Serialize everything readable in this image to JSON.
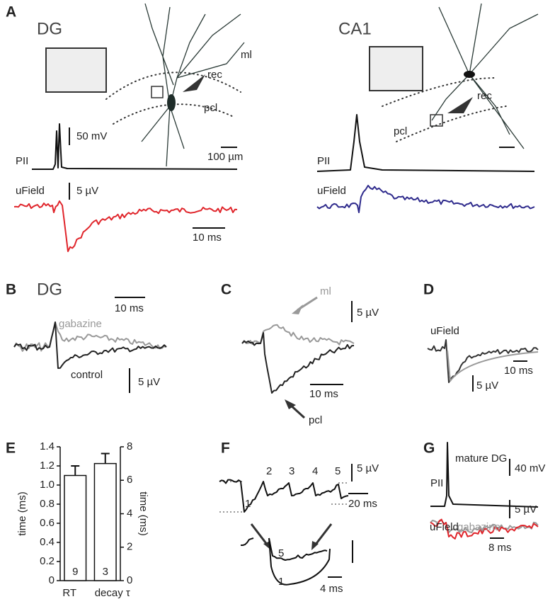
{
  "figure": {
    "panel_labels": [
      "A",
      "B",
      "C",
      "D",
      "E",
      "F",
      "G"
    ],
    "A": {
      "dg": {
        "title": "DG",
        "ml": "ml",
        "rec": "rec",
        "pcl": "pcl",
        "scale_voltage": "50 mV",
        "scale_length": "100 µm",
        "trace_top": "PII",
        "trace_bottom": "uField",
        "scale_field": "5 µV",
        "scale_time": "10 ms"
      },
      "ca1": {
        "title": "CA1",
        "rec": "rec",
        "pcl": "pcl",
        "trace_top": "PII",
        "trace_bottom": "uField"
      }
    },
    "B": {
      "title": "DG",
      "scale_time": "10 ms",
      "gabazine": "gabazine",
      "control": "control",
      "scale_field": "5 µV"
    },
    "C": {
      "ml": "ml",
      "scale_field": "5 µV",
      "scale_time": "10 ms",
      "pcl": "pcl"
    },
    "D": {
      "trace": "uField",
      "scale_time": "10 ms",
      "scale_field": "5 µV"
    },
    "F": {
      "numbers_top": [
        "1",
        "2",
        "3",
        "4",
        "5"
      ],
      "scale_field": "5 µV",
      "scale_time": "20 ms",
      "numbers_bottom": [
        "5",
        "1"
      ],
      "scale_time_bottom": "4 ms"
    },
    "G": {
      "mature": "mature DG",
      "scale_voltage": "40 mV",
      "trace_top": "PII",
      "scale_field": "5 µV",
      "trace_bottom": "uField",
      "gabazine": "gabazine",
      "scale_time": "8 ms"
    }
  },
  "chart_data": {
    "type": "bar",
    "categories": [
      "RT",
      "decay τ"
    ],
    "values": [
      1.1,
      7.0
    ],
    "errors": [
      0.1,
      0.6
    ],
    "value_axes": [
      "y",
      "y2"
    ],
    "n_labels": [
      "9",
      "3"
    ],
    "color": "#ffffff",
    "ylabel": "time (ms)",
    "y2label": "time (ms)",
    "ylim": [
      0,
      1.4
    ],
    "yticks": [
      0,
      0.2,
      0.4,
      0.6,
      0.8,
      {
        "value": 1,
        "label": "1.0"
      },
      1.2,
      1.4
    ],
    "y2lim": [
      0,
      8
    ],
    "y2ticks": [
      0,
      2,
      4,
      6,
      8
    ]
  }
}
